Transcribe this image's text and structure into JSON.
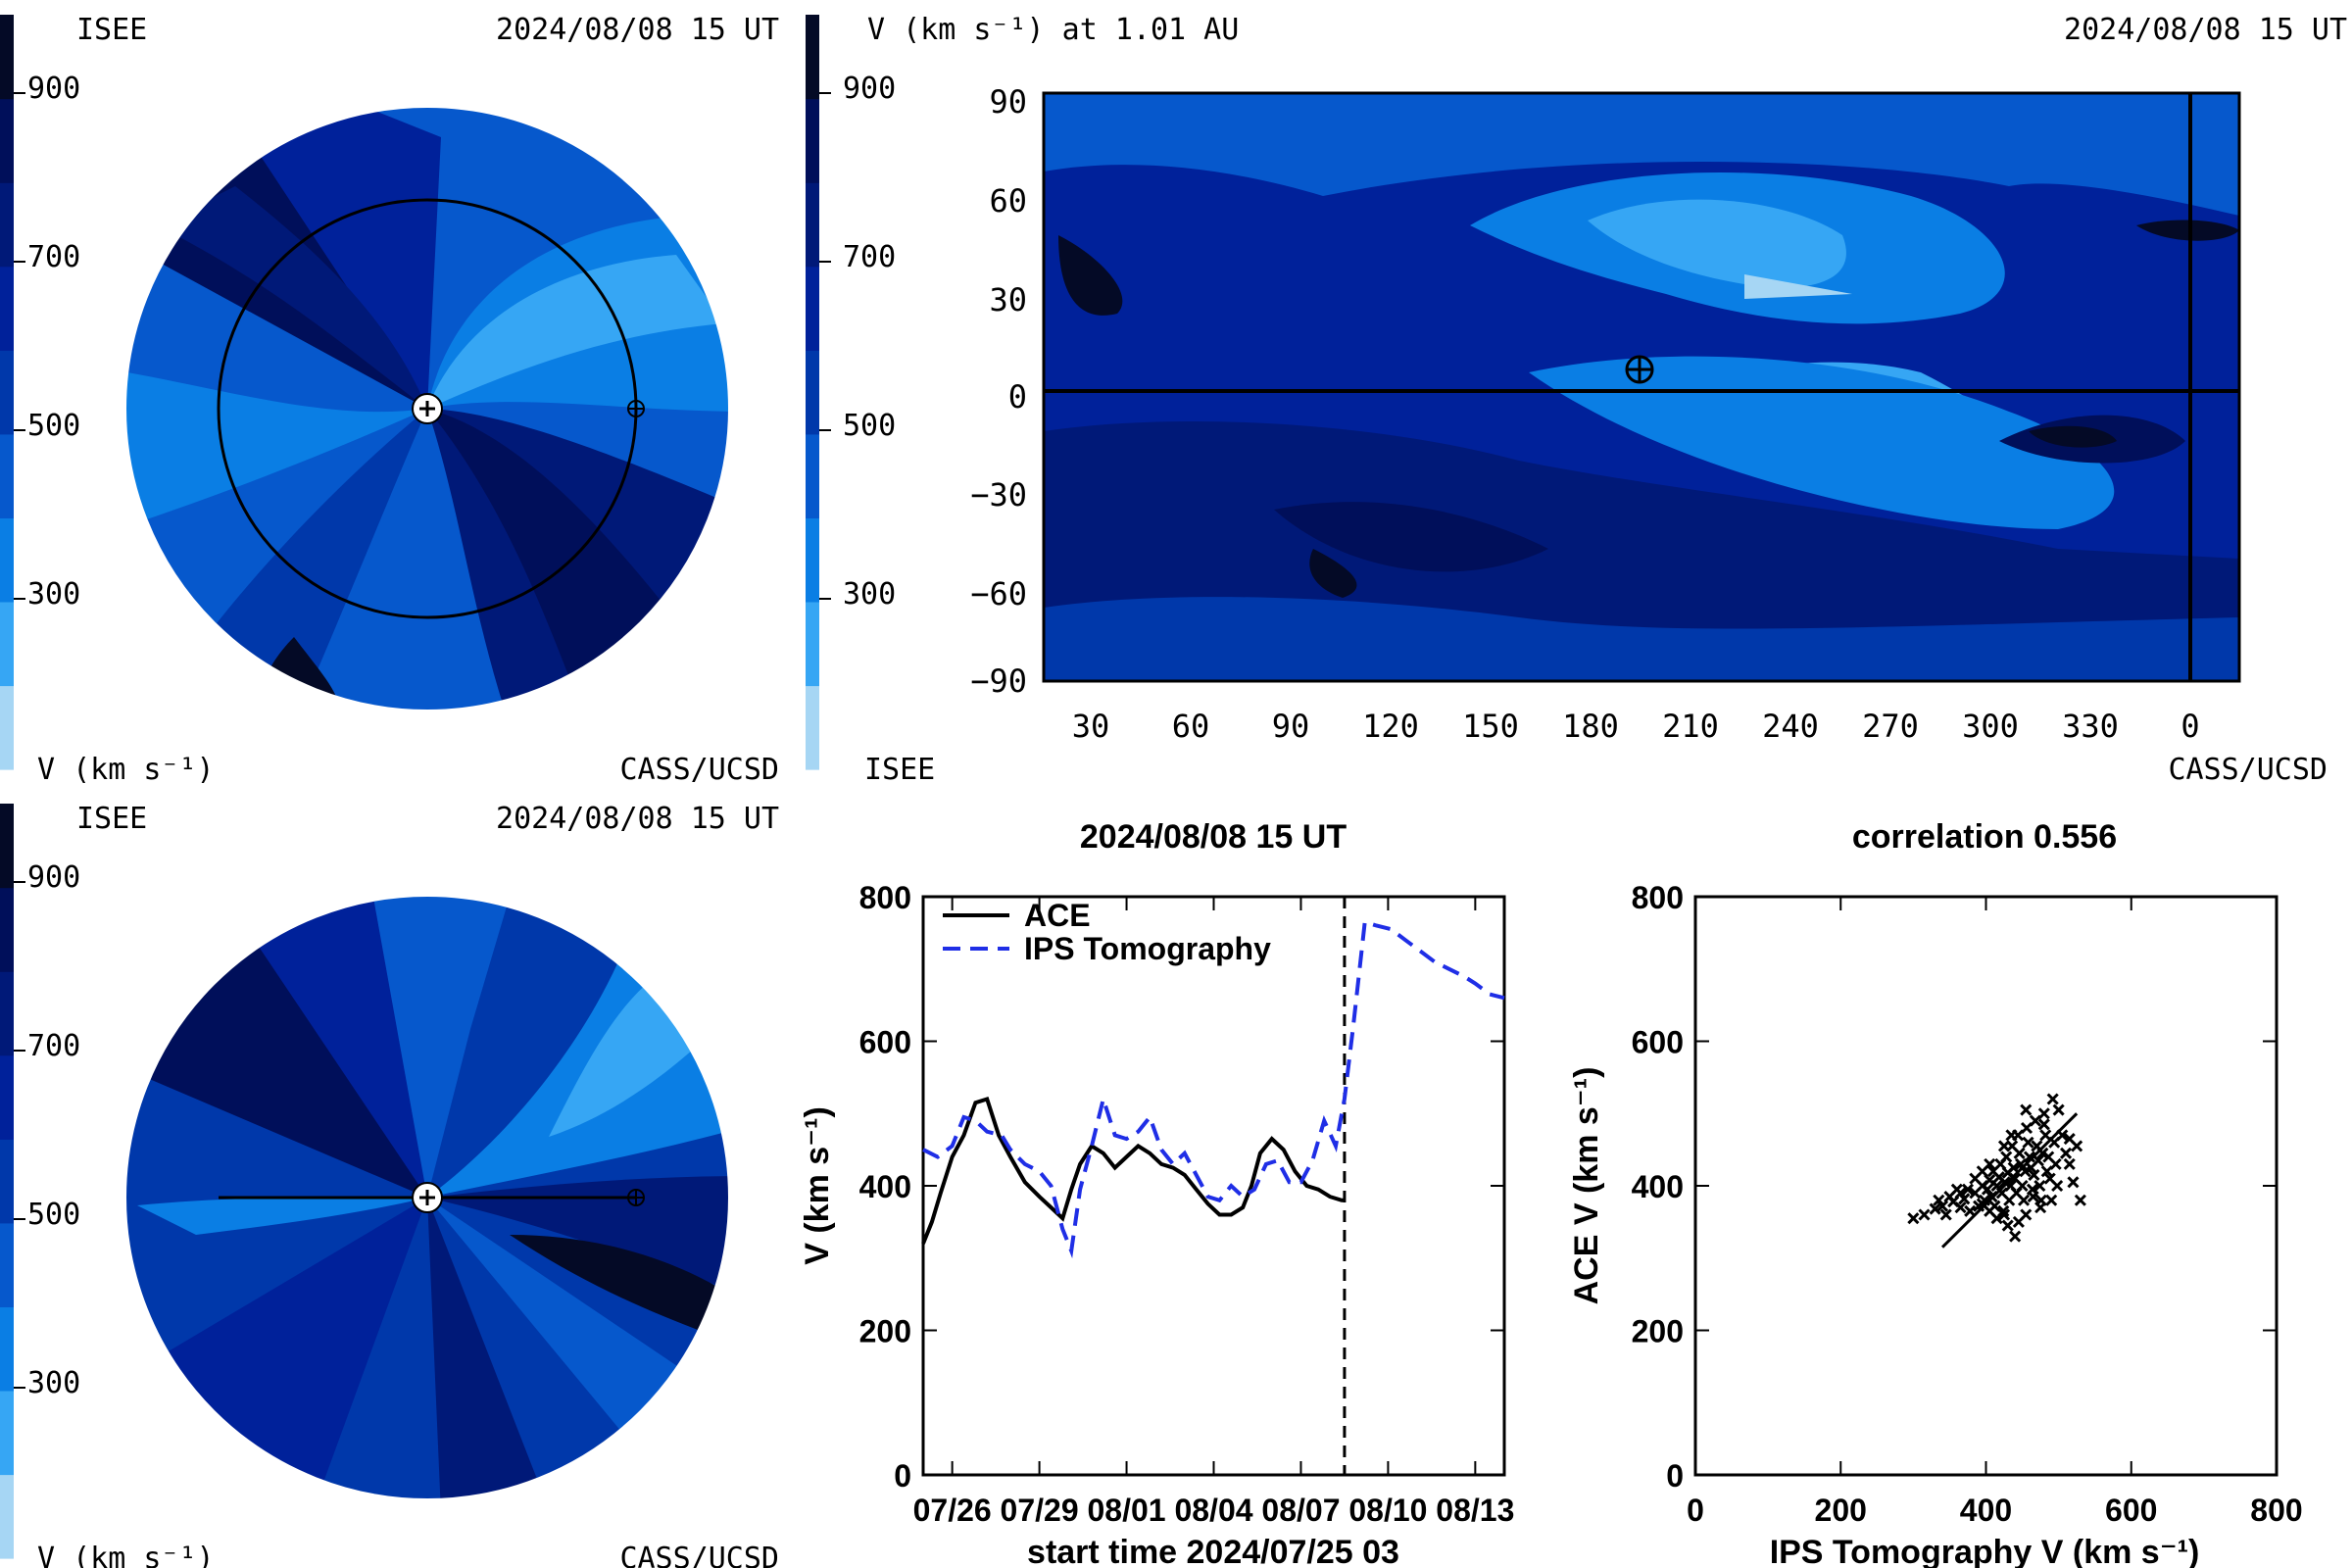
{
  "palette": {
    "levels": [
      "#a6d6f4",
      "#36a6f4",
      "#0a7ee4",
      "#0658cc",
      "#0038aa",
      "#00219a",
      "#001978",
      "#000f5a",
      "#040a26"
    ],
    "background": "#ffffff",
    "ips_line": "#1f2ee6",
    "ace_line": "#000000"
  },
  "top_left": {
    "org": "ISEE",
    "timestamp": "2024/08/08 15 UT",
    "colorbar_ticks": [
      "900",
      "700",
      "500",
      "300"
    ],
    "colorbar_label": "V (km s⁻¹)",
    "credit": "CASS/UCSD"
  },
  "top_right": {
    "title": "V (km s⁻¹) at 1.01 AU",
    "timestamp": "2024/08/08 15 UT",
    "colorbar_ticks": [
      "900",
      "700",
      "500",
      "300"
    ],
    "org": "ISEE",
    "credit": "CASS/UCSD",
    "y_ticks": [
      "90",
      "60",
      "30",
      "0",
      "−30",
      "−60",
      "−90"
    ],
    "x_ticks": [
      "30",
      "60",
      "90",
      "120",
      "150",
      "180",
      "210",
      "240",
      "270",
      "300",
      "330",
      "0"
    ]
  },
  "bottom_left": {
    "org": "ISEE",
    "timestamp": "2024/08/08 15 UT",
    "colorbar_ticks": [
      "900",
      "700",
      "500",
      "300"
    ],
    "colorbar_label": "V (km s⁻¹)",
    "credit": "CASS/UCSD"
  },
  "chart_data": [
    {
      "type": "line",
      "title": "2024/08/08 15 UT",
      "xlabel": "start time 2024/07/25 03",
      "ylabel": "V (km s⁻¹)",
      "ylim": [
        0,
        800
      ],
      "xlim": [
        0,
        20
      ],
      "x_tick_labels": [
        "07/26",
        "07/29",
        "08/01",
        "08/04",
        "08/07",
        "08/10",
        "08/13"
      ],
      "x_tick_positions": [
        1,
        4,
        7,
        10,
        13,
        16,
        19
      ],
      "y_ticks": [
        "0",
        "200",
        "400",
        "600",
        "800"
      ],
      "current_time_marker": 14.5,
      "legend": {
        "position": "top-left"
      },
      "series": [
        {
          "name": "ACE",
          "style": "solid",
          "x": [
            0,
            0.3,
            0.6,
            1,
            1.4,
            1.8,
            2.2,
            2.6,
            3,
            3.5,
            4,
            4.4,
            4.8,
            5.1,
            5.4,
            5.8,
            6.2,
            6.6,
            7,
            7.4,
            7.8,
            8.2,
            8.6,
            9,
            9.4,
            9.8,
            10.2,
            10.6,
            11,
            11.3,
            11.6,
            12,
            12.4,
            12.8,
            13.2,
            13.6,
            14,
            14.4,
            14.5
          ],
          "y": [
            320,
            350,
            390,
            440,
            470,
            515,
            520,
            470,
            440,
            405,
            385,
            370,
            355,
            395,
            430,
            455,
            445,
            425,
            440,
            455,
            445,
            430,
            425,
            415,
            395,
            375,
            360,
            360,
            370,
            400,
            445,
            465,
            450,
            420,
            400,
            395,
            385,
            380,
            380
          ]
        },
        {
          "name": "IPS Tomography",
          "style": "dashed",
          "x": [
            0,
            0.5,
            1,
            1.4,
            1.8,
            2.2,
            2.7,
            3,
            3.5,
            4,
            4.4,
            4.8,
            5.1,
            5.4,
            5.8,
            6.2,
            6.6,
            7,
            7.4,
            7.8,
            8.2,
            8.6,
            9,
            9.4,
            9.8,
            10.2,
            10.6,
            11,
            11.4,
            11.8,
            12.2,
            12.6,
            13,
            13.4,
            13.8,
            14.2,
            14.5,
            14.8,
            15.2,
            15.6,
            16.1,
            16.6,
            17.1,
            17.6,
            18.1,
            18.6,
            19,
            19.5,
            20
          ],
          "y": [
            450,
            440,
            455,
            495,
            490,
            475,
            470,
            450,
            430,
            420,
            400,
            340,
            310,
            395,
            455,
            520,
            470,
            465,
            475,
            495,
            450,
            430,
            445,
            415,
            385,
            380,
            400,
            385,
            395,
            430,
            435,
            405,
            405,
            435,
            490,
            455,
            520,
            620,
            765,
            760,
            755,
            740,
            725,
            710,
            700,
            690,
            680,
            665,
            660
          ]
        }
      ]
    },
    {
      "type": "scatter",
      "title": "correlation 0.556",
      "xlabel": "IPS Tomography V (km s⁻¹)",
      "ylabel": "ACE V (km s⁻¹)",
      "xlim": [
        0,
        800
      ],
      "ylim": [
        0,
        800
      ],
      "x_ticks": [
        "0",
        "200",
        "400",
        "600",
        "800"
      ],
      "y_ticks": [
        "0",
        "200",
        "400",
        "600",
        "800"
      ],
      "fit_line": {
        "x": [
          340,
          525
        ],
        "y": [
          315,
          500
        ]
      },
      "points": [
        [
          300,
          355
        ],
        [
          315,
          360
        ],
        [
          330,
          368
        ],
        [
          340,
          372
        ],
        [
          355,
          378
        ],
        [
          365,
          370
        ],
        [
          370,
          382
        ],
        [
          378,
          365
        ],
        [
          385,
          390
        ],
        [
          390,
          372
        ],
        [
          395,
          400
        ],
        [
          398,
          380
        ],
        [
          402,
          395
        ],
        [
          405,
          408
        ],
        [
          408,
          385
        ],
        [
          410,
          420
        ],
        [
          412,
          372
        ],
        [
          415,
          400
        ],
        [
          418,
          412
        ],
        [
          420,
          430
        ],
        [
          422,
          390
        ],
        [
          424,
          365
        ],
        [
          426,
          405
        ],
        [
          428,
          440
        ],
        [
          430,
          418
        ],
        [
          432,
          380
        ],
        [
          434,
          400
        ],
        [
          436,
          455
        ],
        [
          438,
          425
        ],
        [
          440,
          410
        ],
        [
          442,
          390
        ],
        [
          444,
          470
        ],
        [
          446,
          445
        ],
        [
          448,
          430
        ],
        [
          450,
          400
        ],
        [
          452,
          380
        ],
        [
          454,
          420
        ],
        [
          456,
          480
        ],
        [
          458,
          460
        ],
        [
          460,
          440
        ],
        [
          462,
          425
        ],
        [
          464,
          395
        ],
        [
          466,
          415
        ],
        [
          468,
          490
        ],
        [
          470,
          455
        ],
        [
          472,
          435
        ],
        [
          474,
          400
        ],
        [
          476,
          380
        ],
        [
          478,
          445
        ],
        [
          480,
          500
        ],
        [
          482,
          470
        ],
        [
          484,
          420
        ],
        [
          486,
          440
        ],
        [
          488,
          410
        ],
        [
          490,
          380
        ],
        [
          492,
          520
        ],
        [
          494,
          460
        ],
        [
          496,
          430
        ],
        [
          498,
          400
        ],
        [
          500,
          505
        ],
        [
          505,
          470
        ],
        [
          510,
          445
        ],
        [
          515,
          430
        ],
        [
          520,
          405
        ],
        [
          525,
          455
        ],
        [
          530,
          380
        ],
        [
          440,
          330
        ],
        [
          430,
          345
        ],
        [
          425,
          360
        ],
        [
          415,
          355
        ],
        [
          445,
          350
        ],
        [
          455,
          360
        ],
        [
          475,
          370
        ],
        [
          465,
          385
        ],
        [
          435,
          470
        ],
        [
          425,
          455
        ],
        [
          405,
          430
        ],
        [
          395,
          420
        ],
        [
          385,
          410
        ],
        [
          375,
          395
        ],
        [
          365,
          390
        ],
        [
          350,
          385
        ],
        [
          345,
          360
        ],
        [
          335,
          380
        ],
        [
          360,
          395
        ],
        [
          395,
          375
        ],
        [
          405,
          365
        ],
        [
          455,
          505
        ],
        [
          480,
          485
        ],
        [
          515,
          465
        ]
      ]
    }
  ]
}
